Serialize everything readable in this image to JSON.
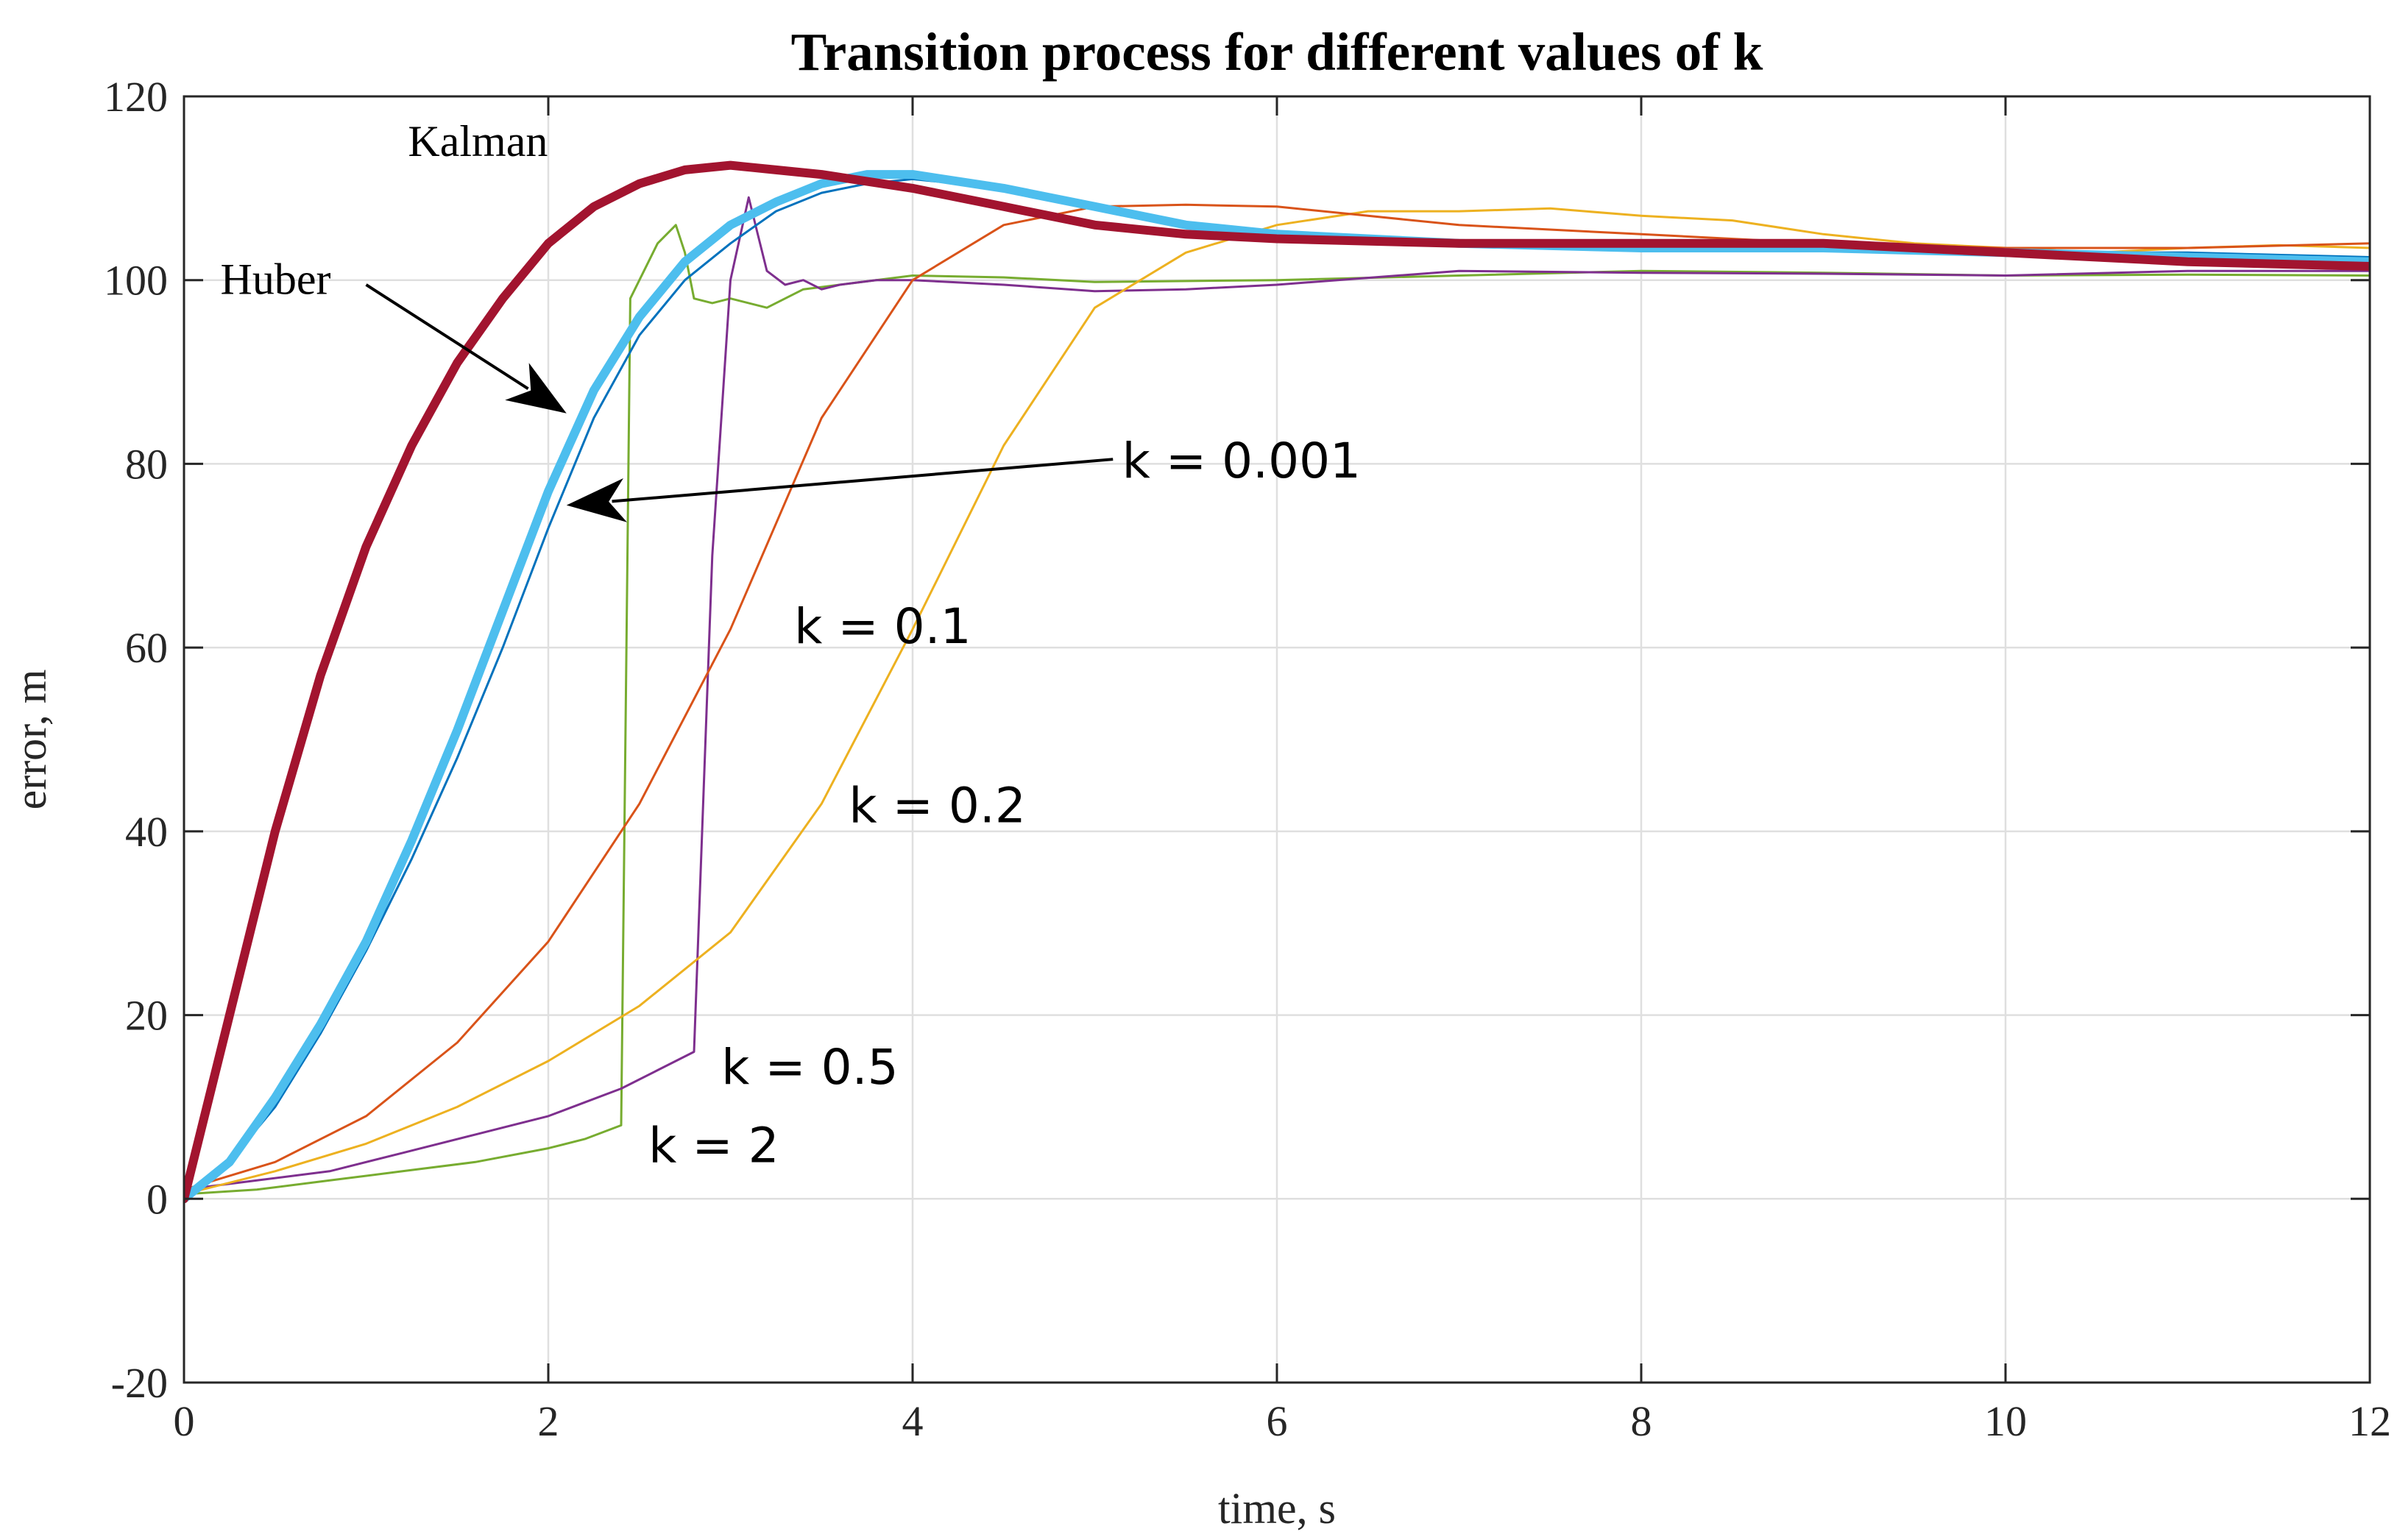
{
  "chart_data": {
    "type": "line",
    "title": "Transition process for different values of k",
    "xlabel": "time, s",
    "ylabel": "error, m",
    "xlim": [
      0,
      12
    ],
    "ylim": [
      -20,
      120
    ],
    "xticks": [
      0,
      2,
      4,
      6,
      8,
      10,
      12
    ],
    "yticks": [
      -20,
      0,
      20,
      40,
      60,
      80,
      100,
      120
    ],
    "xtick_labels": [
      "0",
      "2",
      "4",
      "6",
      "8",
      "10",
      "12"
    ],
    "ytick_labels": [
      "-20",
      "0",
      "20",
      "40",
      "60",
      "80",
      "100",
      "120"
    ],
    "grid": true,
    "series": [
      {
        "name": "k = 2",
        "color": "#77ac30",
        "width": 3,
        "x": [
          0,
          0.4,
          0.8,
          1.2,
          1.6,
          2.0,
          2.2,
          2.4,
          2.45,
          2.6,
          2.7,
          2.75,
          2.8,
          2.9,
          3.0,
          3.2,
          3.4,
          3.6,
          3.8,
          4.0,
          4.5,
          5,
          6,
          7,
          8,
          9,
          10,
          11,
          12
        ],
        "y": [
          0.5,
          1,
          2,
          3,
          4,
          5.5,
          6.5,
          8,
          98,
          104,
          106,
          103,
          98,
          97.5,
          98,
          97,
          99,
          99.5,
          100,
          100.5,
          100.3,
          99.8,
          100,
          100.5,
          101,
          100.8,
          100.5,
          100.6,
          100.5
        ]
      },
      {
        "name": "k = 0.5",
        "color": "#7e2f8e",
        "width": 3,
        "x": [
          0,
          0.4,
          0.8,
          1.2,
          1.6,
          2.0,
          2.2,
          2.4,
          2.6,
          2.8,
          2.9,
          3.0,
          3.1,
          3.15,
          3.2,
          3.3,
          3.4,
          3.5,
          3.6,
          3.8,
          4.0,
          4.5,
          5,
          5.5,
          6,
          7,
          8,
          9,
          10,
          11,
          12
        ],
        "y": [
          1,
          2,
          3,
          5,
          7,
          9,
          10.5,
          12,
          14,
          16,
          70,
          100,
          109,
          105,
          101,
          99.5,
          100,
          99,
          99.5,
          100,
          100,
          99.5,
          98.8,
          99,
          99.5,
          101,
          100.8,
          100.7,
          100.5,
          101,
          101
        ]
      },
      {
        "name": "k = 0.2",
        "color": "#edb120",
        "width": 3,
        "x": [
          0,
          0.5,
          1.0,
          1.5,
          2.0,
          2.5,
          3.0,
          3.5,
          4.0,
          4.5,
          5.0,
          5.5,
          6.0,
          6.5,
          7,
          7.5,
          8,
          8.5,
          9,
          9.5,
          10,
          10.5,
          11,
          11.5,
          12
        ],
        "y": [
          0.5,
          3,
          6,
          10,
          15,
          21,
          29,
          43,
          62,
          82,
          97,
          103,
          106,
          107.5,
          107.5,
          107.8,
          107,
          106.5,
          105,
          104,
          103.5,
          103,
          103.5,
          103.8,
          103.5
        ]
      },
      {
        "name": "k = 0.1",
        "color": "#d95319",
        "width": 3,
        "x": [
          0,
          0.5,
          1.0,
          1.5,
          2.0,
          2.5,
          3.0,
          3.5,
          4.0,
          4.5,
          5.0,
          5.5,
          6.0,
          6.5,
          7,
          8,
          9,
          10,
          11,
          12
        ],
        "y": [
          1,
          4,
          9,
          17,
          28,
          43,
          62,
          85,
          100,
          106,
          108,
          108.2,
          108,
          107,
          106,
          105,
          104,
          103.5,
          103.5,
          104
        ]
      },
      {
        "name": "k = 0.001",
        "color": "#0072bd",
        "width": 3,
        "x": [
          0,
          0.25,
          0.5,
          0.75,
          1.0,
          1.25,
          1.5,
          1.75,
          2.0,
          2.25,
          2.5,
          2.75,
          3.0,
          3.25,
          3.5,
          3.75,
          4.0,
          4.5,
          5,
          5.5,
          6,
          7,
          8,
          9,
          10,
          11,
          12
        ],
        "y": [
          0,
          4,
          10,
          18,
          27,
          37,
          48,
          60,
          73,
          85,
          94,
          100,
          104,
          107.5,
          109.5,
          110.5,
          111,
          110,
          108,
          106,
          105,
          104,
          103.5,
          103.5,
          103,
          103,
          102.5
        ]
      },
      {
        "name": "Huber",
        "color": "#4dbeee",
        "width": 12,
        "x": [
          0,
          0.25,
          0.5,
          0.75,
          1.0,
          1.25,
          1.5,
          1.75,
          2.0,
          2.25,
          2.5,
          2.75,
          3.0,
          3.25,
          3.5,
          3.75,
          4.0,
          4.5,
          5,
          5.5,
          6,
          7,
          8,
          9,
          10,
          11,
          12
        ],
        "y": [
          0,
          4,
          11,
          19,
          28,
          39,
          51,
          64,
          77,
          88,
          96,
          102,
          106,
          108.5,
          110.5,
          111.5,
          111.5,
          110,
          108,
          106,
          105,
          104,
          103.5,
          103.5,
          103,
          102.5,
          102
        ]
      },
      {
        "name": "Kalman",
        "color": "#a2142f",
        "width": 12,
        "x": [
          0,
          0.25,
          0.5,
          0.75,
          1.0,
          1.25,
          1.5,
          1.75,
          2.0,
          2.25,
          2.5,
          2.75,
          3.0,
          3.25,
          3.5,
          4.0,
          4.5,
          5,
          5.5,
          6,
          7,
          8,
          9,
          10,
          11,
          12
        ],
        "y": [
          0,
          20,
          40,
          57,
          71,
          82,
          91,
          98,
          104,
          108,
          110.5,
          112,
          112.5,
          112,
          111.5,
          110,
          108,
          106,
          105,
          104.5,
          104,
          104,
          104,
          103,
          102,
          101.5
        ]
      }
    ],
    "annotations": [
      {
        "text": "Kalman",
        "font": "serif",
        "x": 1.23,
        "y": 113.5
      },
      {
        "text": "Huber",
        "font": "serif",
        "x": 0.2,
        "y": 98.5
      },
      {
        "text": "k = 0.001",
        "font": "sans",
        "x": 5.15,
        "y": 78.5
      },
      {
        "text": "k = 0.1",
        "font": "sans",
        "x": 3.35,
        "y": 60.5
      },
      {
        "text": "k = 0.2",
        "font": "sans",
        "x": 3.65,
        "y": 41
      },
      {
        "text": "k = 0.5",
        "font": "sans",
        "x": 2.95,
        "y": 12.5
      },
      {
        "text": "k = 2",
        "font": "sans",
        "x": 2.55,
        "y": 4
      }
    ],
    "arrows": [
      {
        "from": [
          1.0,
          99.5
        ],
        "to": [
          2.1,
          85.5
        ]
      },
      {
        "from": [
          5.1,
          80.5
        ],
        "to": [
          2.1,
          75.5
        ]
      }
    ]
  }
}
